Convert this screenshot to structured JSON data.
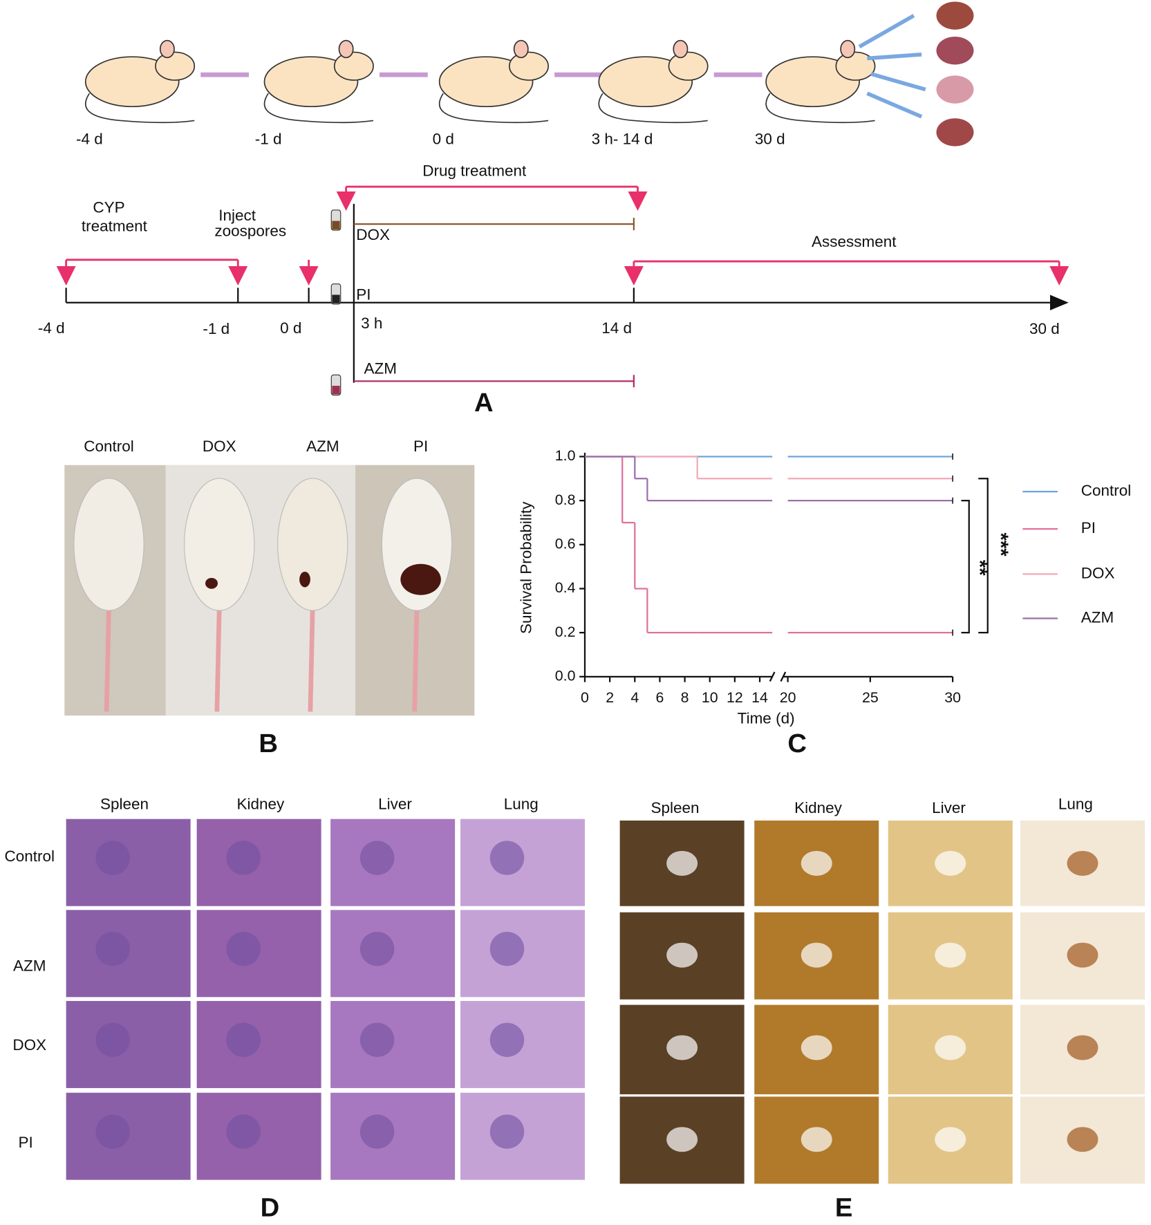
{
  "panel_a": {
    "label": "A",
    "top_times": [
      "-4 d",
      "-1 d",
      "0 d",
      "3 h- 14 d",
      "30 d"
    ],
    "cyp": [
      "CYP",
      "treatment"
    ],
    "inject": [
      "Inject",
      "zoospores"
    ],
    "drug_treatment": "Drug treatment",
    "assessment": "Assessment",
    "drugs": [
      "DOX",
      "PI",
      "AZM"
    ],
    "axis_times": [
      "-4 d",
      "-1 d",
      "0 d",
      "3 h",
      "14 d",
      "30 d"
    ]
  },
  "panel_b": {
    "label": "B",
    "groups": [
      "Control",
      "DOX",
      "AZM",
      "PI"
    ]
  },
  "chart_data": {
    "type": "line",
    "panel_label": "C",
    "xlabel": "Time (d)",
    "ylabel": "Survival Probability",
    "step": true,
    "x": [
      0,
      3,
      4,
      5,
      9,
      30
    ],
    "series": [
      {
        "name": "Control",
        "color": "#6fa3d8",
        "values": [
          1.0,
          1.0,
          1.0,
          1.0,
          1.0,
          1.0
        ]
      },
      {
        "name": "PI",
        "color": "#e0709c",
        "values": [
          1.0,
          0.7,
          0.4,
          0.2,
          0.2,
          0.2
        ]
      },
      {
        "name": "DOX",
        "color": "#f2a9b6",
        "values": [
          1.0,
          1.0,
          1.0,
          1.0,
          0.9,
          0.9
        ]
      },
      {
        "name": "AZM",
        "color": "#9b6fa9",
        "values": [
          1.0,
          1.0,
          0.9,
          0.8,
          0.8,
          0.8
        ]
      }
    ],
    "xlim": [
      0,
      30
    ],
    "x_break": [
      15,
      20
    ],
    "xticks": [
      0,
      2,
      4,
      6,
      8,
      10,
      12,
      14,
      20,
      25,
      30
    ],
    "ylim": [
      0,
      1
    ],
    "yticks": [
      {
        "value": 0,
        "label": "0.0"
      },
      0.2,
      0.4,
      0.6,
      0.8,
      {
        "value": 1,
        "label": "1.0"
      }
    ],
    "legend": "right",
    "annotations": [
      "**",
      "***"
    ]
  },
  "panel_d": {
    "label": "D",
    "organs": [
      "Spleen",
      "Kidney",
      "Liver",
      "Lung"
    ],
    "groups": [
      "Control",
      "AZM",
      "DOX",
      "PI"
    ]
  },
  "panel_e": {
    "label": "E",
    "organs": [
      "Spleen",
      "Kidney",
      "Liver",
      "Lung"
    ]
  }
}
